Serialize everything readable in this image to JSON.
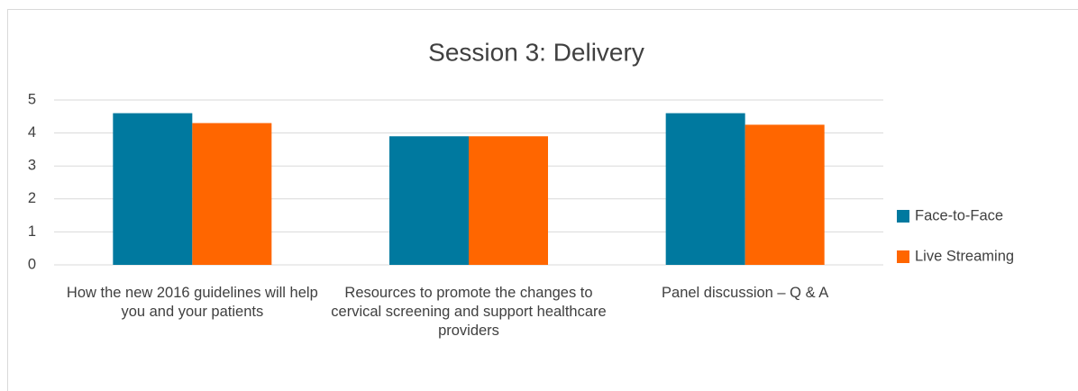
{
  "chart_data": {
    "type": "bar",
    "title": "Session 3: Delivery",
    "categories": [
      "How the new 2016 guidelines will help you and your patients",
      "Resources to promote the changes to cervical screening and support healthcare providers",
      "Panel discussion – Q & A"
    ],
    "series": [
      {
        "name": "Face-to-Face",
        "color": "#00799f",
        "values": [
          4.6,
          3.9,
          4.6
        ]
      },
      {
        "name": "Live Streaming",
        "color": "#ff6600",
        "values": [
          4.3,
          3.9,
          4.25
        ]
      }
    ],
    "ylim": [
      0,
      5
    ],
    "yticks": [
      0,
      1,
      2,
      3,
      4,
      5
    ],
    "grid": true,
    "legend": "right"
  }
}
